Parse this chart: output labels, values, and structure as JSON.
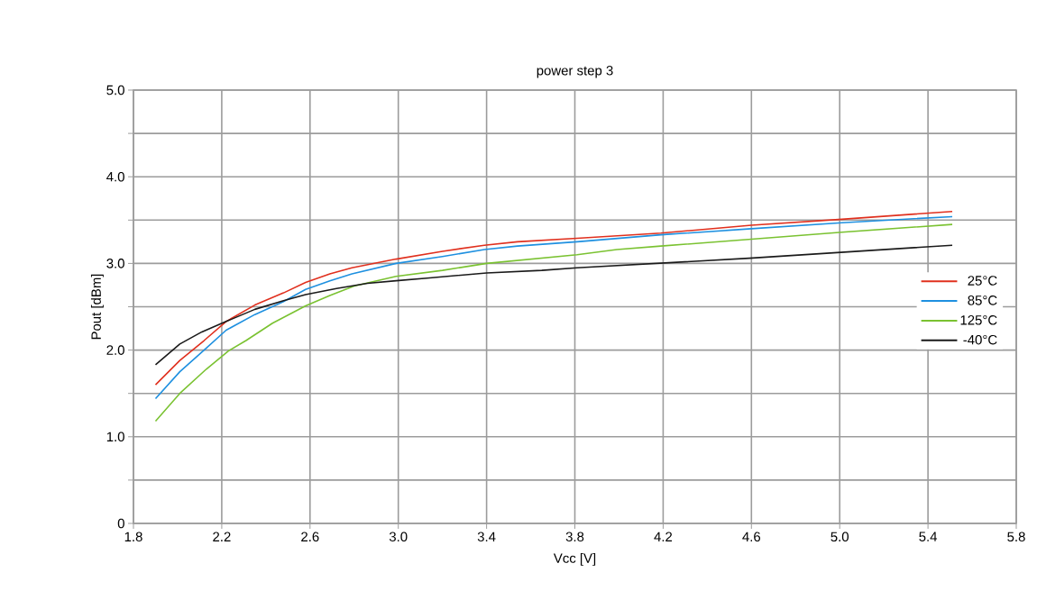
{
  "chart_data": {
    "type": "line",
    "title": "power step 3",
    "xlabel": "Vcc [V]",
    "ylabel": "Pout [dBm]",
    "x": [
      1.9,
      2.01,
      2.12,
      2.22,
      2.35,
      2.48,
      2.58,
      2.69,
      2.79,
      2.99,
      3.2,
      3.39,
      3.54,
      3.81,
      4.19,
      4.6,
      5.01,
      5.51
    ],
    "series": [
      {
        "name": "25°C",
        "color": "#e0301e",
        "values": [
          1.6,
          1.88,
          2.11,
          2.33,
          2.52,
          2.66,
          2.78,
          2.88,
          2.95,
          3.05,
          3.14,
          3.21,
          3.25,
          3.29,
          3.35,
          3.44,
          3.51,
          3.6
        ]
      },
      {
        "name": "85°C",
        "color": "#1e90e0",
        "values": [
          1.44,
          1.75,
          2.0,
          2.23,
          2.41,
          2.56,
          2.7,
          2.8,
          2.88,
          3.0,
          3.08,
          3.16,
          3.2,
          3.25,
          3.33,
          3.4,
          3.47,
          3.54
        ]
      },
      {
        "name": "125°C",
        "color": "#7ac231",
        "x": [
          1.9,
          2.01,
          2.13,
          2.23,
          2.31,
          2.43,
          2.58,
          2.69,
          2.8,
          2.99,
          3.2,
          3.4,
          3.81,
          3.99,
          4.19,
          4.6,
          5.01,
          5.51
        ],
        "values": [
          1.18,
          1.5,
          1.78,
          1.99,
          2.11,
          2.31,
          2.51,
          2.63,
          2.74,
          2.85,
          2.92,
          3.0,
          3.1,
          3.16,
          3.2,
          3.28,
          3.36,
          3.45
        ]
      },
      {
        "name": "-40°C",
        "color": "#1a1a1a",
        "x": [
          1.9,
          2.01,
          2.11,
          2.22,
          2.35,
          2.48,
          2.58,
          2.72,
          2.86,
          2.99,
          3.13,
          3.4,
          3.65,
          3.81,
          4.59,
          5.51
        ],
        "values": [
          1.83,
          2.07,
          2.21,
          2.33,
          2.47,
          2.57,
          2.64,
          2.71,
          2.77,
          2.8,
          2.83,
          2.89,
          2.92,
          2.95,
          3.06,
          3.21
        ]
      }
    ],
    "xlim": [
      1.8,
      5.8
    ],
    "ylim": [
      0,
      5
    ],
    "xticks": [
      1.8,
      2.2,
      2.6,
      {
        "value": 3,
        "label": "3.0"
      },
      3.4,
      3.8,
      4.2,
      4.6,
      {
        "value": 5,
        "label": "5.0"
      },
      5.4,
      5.8
    ],
    "yticks": [
      0,
      {
        "value": 0.5,
        "label": null
      },
      {
        "value": 1,
        "label": "1.0"
      },
      {
        "value": 1.5,
        "label": null
      },
      {
        "value": 2,
        "label": "2.0"
      },
      {
        "value": 2.5,
        "label": null
      },
      {
        "value": 3,
        "label": "3.0"
      },
      {
        "value": 3.5,
        "label": null
      },
      {
        "value": 4,
        "label": "4.0"
      },
      {
        "value": 4.5,
        "label": null
      },
      {
        "value": 5,
        "label": "5.0"
      }
    ],
    "grid": true,
    "legend": "right",
    "line_style": "solid",
    "marker": "none"
  }
}
